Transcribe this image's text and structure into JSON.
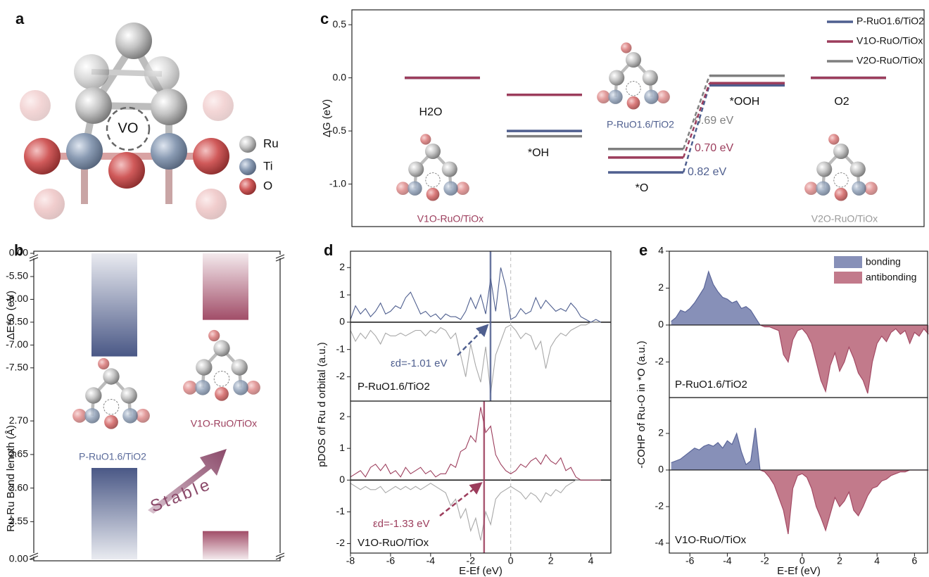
{
  "panel_a": {
    "label": "a",
    "vacancy_label": "VO",
    "legend": [
      "Ru",
      "Ti",
      "O"
    ]
  },
  "chart_data": [
    {
      "type": "levels",
      "label": "c",
      "ylabel": "ΔG (eV)",
      "ylim": [
        -1.4,
        0.64
      ],
      "yticks": [
        0.5,
        {
          "value": 0,
          "label": "0.0"
        },
        -0.5,
        {
          "value": -1,
          "label": "-1.0"
        }
      ],
      "categories": [
        "H2O",
        "*OH",
        "*O",
        "*OOH",
        "O2"
      ],
      "series": [
        {
          "name": "P-RuO1.6/TiO2",
          "color": "#4f5f8f",
          "values": [
            0,
            -0.5,
            -0.89,
            -0.07,
            0
          ],
          "barrier_label": "0.82 eV"
        },
        {
          "name": "V1O-RuO/TiOx",
          "color": "#9c3d5c",
          "values": [
            0,
            -0.16,
            -0.75,
            -0.05,
            0
          ],
          "barrier_label": "0.70 eV"
        },
        {
          "name": "V2O-RuO/TiOx",
          "color": "#7f7f7f",
          "values": [
            0,
            -0.55,
            -0.67,
            0.02,
            0
          ],
          "barrier_label": "0.69 eV"
        }
      ],
      "structure_labels": [
        "V1O-RuO/TiOx",
        "P-RuO1.6/TiO2",
        "V2O-RuO/TiOx"
      ],
      "legend": "upper right"
    },
    {
      "type": "bar",
      "label": "b",
      "ylabel": "ΔE*O (eV)",
      "categories": [
        "P-RuO1.6/TiO2",
        "V1O-RuO/TiOx"
      ],
      "values": [
        -7.25,
        -6.45
      ],
      "colors": [
        "#4a5886",
        "#a14d68"
      ],
      "ylim": [
        -7.75,
        -5.3
      ],
      "yticks": [
        {
          "value": -5.5,
          "label": "-5.50"
        },
        {
          "value": -6,
          "label": "-6.00"
        },
        {
          "value": -6.5,
          "label": "-6.50"
        },
        {
          "value": -7,
          "label": "-7.00"
        },
        {
          "value": -7.5,
          "label": "-7.50"
        }
      ],
      "axis_break": {
        "value": 0,
        "label": "0.00"
      },
      "annotation": "Stable"
    },
    {
      "type": "bar",
      "ylabel": "Ru-Ru Bond length (Å)",
      "values": [
        2.63,
        2.536
      ],
      "colors": [
        "#4a5886",
        "#a14d68"
      ],
      "ylim": [
        2.52,
        2.74
      ],
      "yticks": [
        2.55,
        {
          "value": 2.6,
          "label": "2.60"
        },
        2.65,
        {
          "value": 2.7,
          "label": "2.70"
        }
      ],
      "axis_break": {
        "value": 0,
        "label": "0.00"
      }
    },
    {
      "type": "dos",
      "label": "d",
      "ylabel": "pDOS of Ru d orbital (a.u.)",
      "xlim": [
        -8,
        5
      ],
      "ylim": [
        -2.89,
        2.6
      ],
      "yticks": [
        -2,
        -1,
        0,
        1,
        2
      ],
      "x": [
        -8,
        -7.75,
        -7.5,
        -7.25,
        -7,
        -6.75,
        -6.5,
        -6.25,
        -6,
        -5.75,
        -5.5,
        -5.25,
        -5,
        -4.75,
        -4.5,
        -4.25,
        -4,
        -3.75,
        -3.5,
        -3.25,
        -3,
        -2.75,
        -2.5,
        -2.25,
        -2,
        -1.75,
        -1.5,
        -1.25,
        -1,
        -0.75,
        -0.5,
        -0.25,
        0,
        0.25,
        0.5,
        0.75,
        1,
        1.25,
        1.5,
        1.75,
        2,
        2.25,
        2.5,
        2.75,
        3,
        3.25,
        3.5,
        3.75,
        4,
        4.25,
        4.5
      ],
      "series": [
        {
          "color": "#4f5f8f",
          "values": [
            0.1,
            0.6,
            0.3,
            0.5,
            0.2,
            0.4,
            0.7,
            0.3,
            0.4,
            0.6,
            0.5,
            0.9,
            1.1,
            0.7,
            0.3,
            0.4,
            0.2,
            0.3,
            0.1,
            0.3,
            0.2,
            0.2,
            0.1,
            0.4,
            0.9,
            0.5,
            1.0,
            0.3,
            1.6,
            0.4,
            2.0,
            1.3,
            0.1,
            0.2,
            0.5,
            0.3,
            0.4,
            0.9,
            0.5,
            0.8,
            0.6,
            0.4,
            0.5,
            0.4,
            0.7,
            0.5,
            0.2,
            0.1,
            0.0,
            0.1,
            0.0
          ]
        },
        {
          "color": "#a8a8a8",
          "values": [
            -0.3,
            -0.7,
            -0.4,
            -0.6,
            -0.3,
            -0.5,
            -0.8,
            -0.4,
            -0.5,
            -0.5,
            -0.4,
            -0.5,
            -0.4,
            -0.3,
            -0.3,
            -0.5,
            -0.3,
            -0.4,
            -0.2,
            -0.3,
            -0.6,
            -0.4,
            -1.2,
            -2.0,
            -0.8,
            -1.6,
            -2.2,
            -0.9,
            -2.6,
            -1.2,
            -0.7,
            -0.2,
            -0.1,
            -0.3,
            -0.6,
            -0.4,
            -0.5,
            -1.0,
            -0.7,
            -1.7,
            -0.9,
            -0.6,
            -0.4,
            -0.5,
            -0.3,
            -0.2,
            -0.1,
            -0.1,
            0,
            0,
            0
          ]
        }
      ],
      "system_label": "P-RuO1.6/TiO2",
      "d_band_center": {
        "value": -1.01,
        "label": "εd=-1.01 eV"
      },
      "fermi_level": 0
    },
    {
      "type": "dos",
      "xlabel": "E-Ef (eV)",
      "xlim": [
        -8,
        5
      ],
      "ylim": [
        -2.3,
        2.49
      ],
      "yticks": [
        -2,
        -1,
        0,
        1,
        2
      ],
      "xticks": [
        -8,
        -6,
        -4,
        -2,
        0,
        2,
        4
      ],
      "x": [
        -8,
        -7.75,
        -7.5,
        -7.25,
        -7,
        -6.75,
        -6.5,
        -6.25,
        -6,
        -5.75,
        -5.5,
        -5.25,
        -5,
        -4.75,
        -4.5,
        -4.25,
        -4,
        -3.75,
        -3.5,
        -3.25,
        -3,
        -2.75,
        -2.5,
        -2.25,
        -2,
        -1.75,
        -1.5,
        -1.25,
        -1,
        -0.75,
        -0.5,
        -0.25,
        0,
        0.25,
        0.5,
        0.75,
        1,
        1.25,
        1.5,
        1.75,
        2,
        2.25,
        2.5,
        2.75,
        3,
        3.25,
        3.5,
        3.75,
        4,
        4.25,
        4.5
      ],
      "series": [
        {
          "color": "#9c3d5c",
          "values": [
            0.1,
            0.2,
            0.3,
            0.1,
            0.4,
            0.5,
            0.3,
            0.5,
            0.2,
            0.3,
            0.1,
            0.4,
            0.2,
            0.3,
            0.4,
            0.2,
            0.3,
            0.1,
            0.2,
            0.2,
            0.5,
            0.4,
            0.9,
            1.0,
            1.4,
            1.2,
            2.3,
            1.5,
            1.7,
            0.8,
            0.5,
            0.3,
            0.2,
            0.3,
            0.5,
            0.4,
            0.6,
            0.7,
            0.5,
            0.8,
            0.6,
            0.5,
            0.7,
            0.3,
            0.4,
            0.1,
            0,
            0,
            0,
            0,
            0
          ]
        },
        {
          "color": "#a8a8a8",
          "values": [
            -0.1,
            -0.2,
            -0.3,
            -0.2,
            -0.3,
            -0.3,
            -0.2,
            -0.4,
            -0.3,
            -0.2,
            -0.3,
            -0.2,
            -0.3,
            -0.2,
            -0.3,
            -0.2,
            -0.1,
            -0.2,
            -0.3,
            -0.4,
            -0.8,
            -0.6,
            -1.2,
            -0.9,
            -1.6,
            -1.2,
            -1.9,
            -1.0,
            -1.4,
            -0.6,
            -0.4,
            -0.3,
            -0.2,
            -0.3,
            -0.4,
            -0.6,
            -0.4,
            -0.5,
            -0.7,
            -0.4,
            -0.5,
            -0.3,
            -0.4,
            -0.2,
            -0.1,
            0,
            0,
            0,
            0,
            0,
            0
          ]
        }
      ],
      "system_label": "V1O-RuO/TiOx",
      "d_band_center": {
        "value": -1.33,
        "label": "εd=-1.33 eV"
      },
      "fermi_level": 0
    },
    {
      "type": "cohp",
      "label": "e",
      "ylabel": "-COHP of Ru-O in *O (a.u.)",
      "xlim": [
        -7.1,
        6.7
      ],
      "ylim": [
        -3.93,
        4
      ],
      "yticks": [
        -2,
        0,
        2,
        4
      ],
      "x": [
        -7,
        -6.75,
        -6.5,
        -6.25,
        -6,
        -5.75,
        -5.5,
        -5.25,
        -5,
        -4.75,
        -4.5,
        -4.25,
        -4,
        -3.75,
        -3.5,
        -3.25,
        -3,
        -2.75,
        -2.5,
        -2.25,
        -2,
        -1.75,
        -1.5,
        -1.25,
        -1,
        -0.75,
        -0.5,
        -0.25,
        0,
        0.25,
        0.5,
        0.75,
        1,
        1.25,
        1.5,
        1.75,
        2,
        2.25,
        2.5,
        2.75,
        3,
        3.25,
        3.5,
        3.75,
        4,
        4.25,
        4.5,
        4.75,
        5,
        5.25,
        5.5,
        5.75,
        6,
        6.25,
        6.5,
        6.75
      ],
      "values": [
        0.2,
        0.4,
        0.8,
        0.7,
        0.9,
        1.2,
        1.6,
        2.0,
        2.9,
        2.2,
        1.8,
        1.5,
        1.4,
        1.2,
        1.3,
        0.9,
        1.0,
        0.8,
        0.4,
        0,
        -0.1,
        -0.1,
        -0.2,
        -0.3,
        -1.6,
        -2.0,
        -0.8,
        -0.3,
        -0.2,
        -0.5,
        -1.0,
        -2.0,
        -3.0,
        -3.6,
        -2.2,
        -1.5,
        -2.5,
        -2.0,
        -1.2,
        -1.8,
        -2.6,
        -3.0,
        -3.7,
        -2.0,
        -1.0,
        -0.6,
        -0.9,
        -0.4,
        -0.2,
        -0.5,
        -0.3,
        -1.0,
        -0.4,
        -0.6,
        -0.2,
        -0.5
      ],
      "fill_colors": [
        "#8790b8",
        "#c27a8b"
      ],
      "line_colors": [
        "#5b6699",
        "#a34a64"
      ],
      "legend": [
        {
          "name": "bonding",
          "color": "#8790b8"
        },
        {
          "name": "antibonding",
          "color": "#c27a8b"
        }
      ],
      "system_label": "P-RuO1.6/TiO2"
    },
    {
      "type": "cohp",
      "xlabel": "E-Ef (eV)",
      "xlim": [
        -7.1,
        6.7
      ],
      "ylim": [
        -4.54,
        3.96
      ],
      "yticks": [
        -4,
        -2,
        0,
        2
      ],
      "xticks": [
        -6,
        -4,
        -2,
        0,
        2,
        4,
        6
      ],
      "x": [
        -7,
        -6.75,
        -6.5,
        -6.25,
        -6,
        -5.75,
        -5.5,
        -5.25,
        -5,
        -4.75,
        -4.5,
        -4.25,
        -4,
        -3.75,
        -3.5,
        -3.25,
        -3,
        -2.75,
        -2.5,
        -2.25,
        -2,
        -1.75,
        -1.5,
        -1.25,
        -1,
        -0.75,
        -0.5,
        -0.25,
        0,
        0.25,
        0.5,
        0.75,
        1,
        1.25,
        1.5,
        1.75,
        2,
        2.25,
        2.5,
        2.75,
        3,
        3.25,
        3.5,
        3.75,
        4,
        4.25,
        4.5,
        4.75,
        5,
        5.25,
        5.5,
        5.75,
        6,
        6.25,
        6.5,
        6.75
      ],
      "values": [
        0.4,
        0.5,
        0.6,
        0.8,
        1.0,
        1.2,
        1.1,
        1.3,
        1.4,
        1.3,
        1.5,
        1.2,
        1.6,
        1.4,
        2.0,
        1.0,
        0.3,
        0.5,
        2.3,
        0,
        -0.1,
        -0.4,
        -0.8,
        -1.5,
        -2.2,
        -3.5,
        -1.0,
        -0.3,
        -0.2,
        -0.4,
        -1.0,
        -2.0,
        -2.6,
        -3.3,
        -2.4,
        -1.5,
        -2.0,
        -1.7,
        -1.2,
        -2.2,
        -2.5,
        -2.0,
        -1.4,
        -1.0,
        -0.9,
        -0.6,
        -0.5,
        -0.3,
        -0.2,
        -0.1,
        -0.1,
        0,
        0,
        0,
        0,
        0
      ],
      "fill_colors": [
        "#8790b8",
        "#c27a8b"
      ],
      "line_colors": [
        "#5b6699",
        "#a34a64"
      ],
      "system_label": "V1O-RuO/TiOx"
    }
  ]
}
